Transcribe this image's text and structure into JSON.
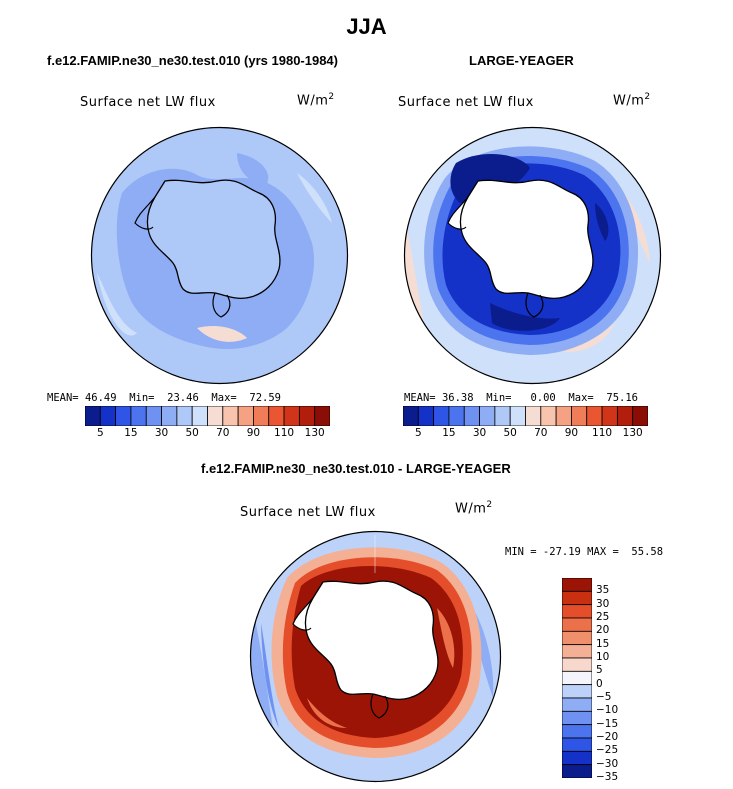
{
  "figure": {
    "title": "JJA",
    "panel_left": {
      "case_title": "f.e12.FAMIP.ne30_ne30.test.010 (yrs 1980-1984)",
      "variable": "Surface net LW flux",
      "units_base": "W/m",
      "units_exp": "2",
      "stats": {
        "mean_label": "MEAN=",
        "mean": "46.49",
        "min_label": "Min=",
        "min": "23.46",
        "max_label": "Max=",
        "max": "72.59"
      }
    },
    "panel_right": {
      "case_title": "LARGE-YEAGER",
      "variable": "Surface net LW flux",
      "units_base": "W/m",
      "units_exp": "2",
      "stats": {
        "mean_label": "MEAN=",
        "mean": "36.38",
        "min_label": "Min=",
        "min": "0.00",
        "max_label": "Max=",
        "max": "75.16"
      }
    },
    "panel_diff": {
      "case_title": "f.e12.FAMIP.ne30_ne30.test.010 - LARGE-YEAGER",
      "variable": "Surface net LW flux",
      "units_base": "W/m",
      "units_exp": "2",
      "minmax_text": "MIN = -27.19 MAX =  55.58"
    }
  },
  "colorbar_abs": {
    "colors": [
      "#0b1c8c",
      "#1431c8",
      "#2f55e6",
      "#4d74ef",
      "#6f92f2",
      "#8fadf5",
      "#aec8f8",
      "#cfe0fb",
      "#f6ddd3",
      "#f8c4ae",
      "#f4a283",
      "#ef7d57",
      "#ea5631",
      "#d13519",
      "#b11e0b",
      "#8a0d06"
    ],
    "ticks": [
      "5",
      "15",
      "30",
      "50",
      "70",
      "90",
      "110",
      "130"
    ]
  },
  "colorbar_diff": {
    "colors": [
      "#0b1c8c",
      "#1431c8",
      "#2f55e6",
      "#4d74ef",
      "#6f92f2",
      "#8fadf5",
      "#bcd2f9",
      "#f4f4fb",
      "#f8d8cc",
      "#f4b095",
      "#f08f6c",
      "#ec7049",
      "#e54e2b",
      "#c9300f",
      "#9b1406"
    ],
    "ticks": [
      "35",
      "30",
      "25",
      "20",
      "15",
      "10",
      "5",
      "0",
      "−5",
      "−10",
      "−15",
      "−20",
      "−25",
      "−30",
      "−35"
    ]
  }
}
